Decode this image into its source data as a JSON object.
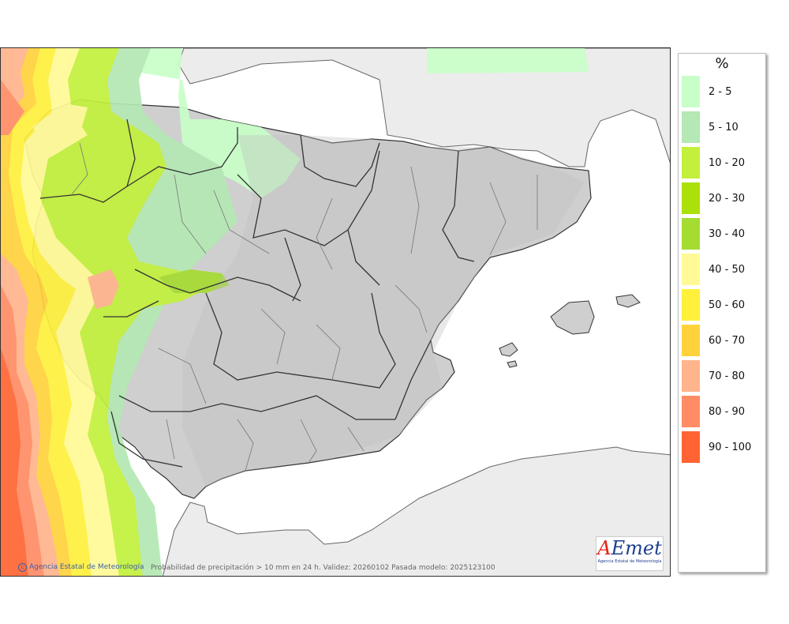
{
  "legend": {
    "title": "%",
    "items": [
      {
        "label": "2 - 5",
        "color": "#c8ffc8"
      },
      {
        "label": "5 - 10",
        "color": "#b4e8b4"
      },
      {
        "label": "10 - 20",
        "color": "#c3f03c"
      },
      {
        "label": "20 - 30",
        "color": "#abe00a"
      },
      {
        "label": "30 - 40",
        "color": "#a5dc32"
      },
      {
        "label": "40 - 50",
        "color": "#fffa96"
      },
      {
        "label": "50 - 60",
        "color": "#fff03c"
      },
      {
        "label": "60 - 70",
        "color": "#ffd23c"
      },
      {
        "label": "70 - 80",
        "color": "#ffb48c"
      },
      {
        "label": "80 - 90",
        "color": "#ff8c64"
      },
      {
        "label": "90 - 100",
        "color": "#ff6432"
      }
    ]
  },
  "footer": {
    "credit": "Agencia Estatal de Meteorología",
    "caption": "Probabilidad de precipitación > 10 mm en 24 h. Validez: 20260102 Pasada modelo: 2025123100"
  },
  "logo": {
    "text": "AEmet",
    "subtitle": "Agencia Estatal de Meteorología"
  },
  "map": {
    "land_color": "#cfcfcf",
    "sea_color": "#ffffff",
    "foreign_land_color": "#ececec",
    "border_color": "#333333"
  }
}
